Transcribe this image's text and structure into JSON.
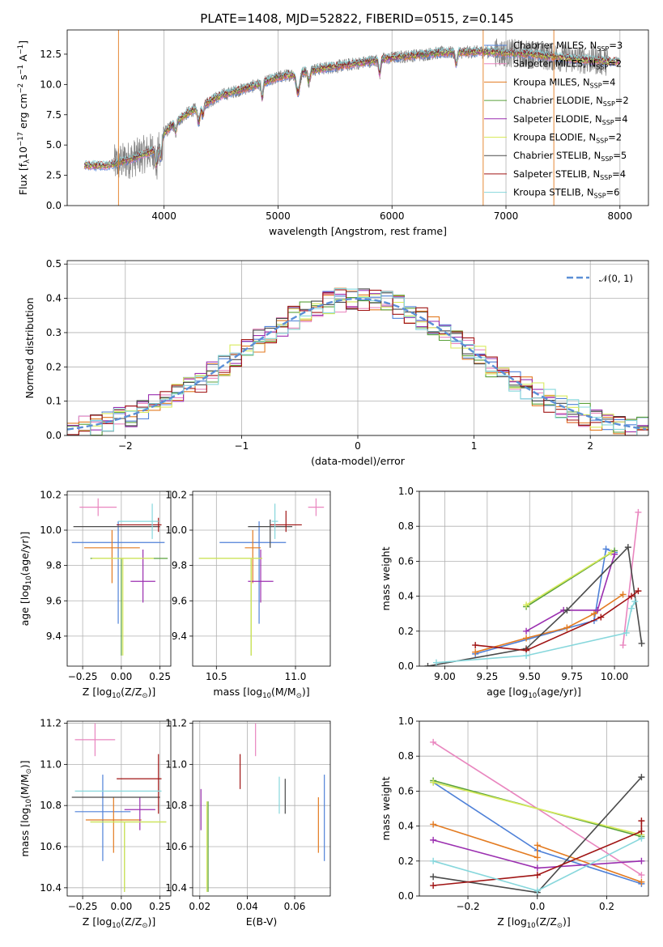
{
  "figure": {
    "title": "PLATE=1408, MJD=52822, FIBERID=0515, z=0.145"
  },
  "models": [
    {
      "name": "Chabrier MILES",
      "nssp": 3,
      "color": "#4f81d8"
    },
    {
      "name": "Salpeter MILES",
      "nssp": 2,
      "color": "#e986bf"
    },
    {
      "name": "Kroupa MILES",
      "nssp": 4,
      "color": "#e37b21"
    },
    {
      "name": "Chabrier ELODIE",
      "nssp": 2,
      "color": "#5aa13a"
    },
    {
      "name": "Salpeter ELODIE",
      "nssp": 4,
      "color": "#9b2fb0"
    },
    {
      "name": "Kroupa ELODIE",
      "nssp": 2,
      "color": "#d8ea5c"
    },
    {
      "name": "Chabrier STELIB",
      "nssp": 5,
      "color": "#4a4a4a"
    },
    {
      "name": "Salpeter STELIB",
      "nssp": 4,
      "color": "#a01414"
    },
    {
      "name": "Kroupa STELIB",
      "nssp": 6,
      "color": "#87d7dc"
    }
  ],
  "legend_labels": [
    "Chabrier MILES, N",
    "Salpeter MILES, N",
    "Kroupa MILES, N",
    "Chabrier ELODIE, N",
    "Salpeter ELODIE, N",
    "Kroupa ELODIE, N",
    "Chabrier STELIB, N",
    "Salpeter STELIB, N",
    "Kroupa STELIB, N"
  ],
  "legend_sub": "SSP",
  "legend_nssp": [
    "=3",
    "=2",
    "=4",
    "=2",
    "=4",
    "=2",
    "=5",
    "=4",
    "=6"
  ],
  "chart_data": [
    {
      "type": "line",
      "xlabel": "wavelength [Angstrom, rest frame]",
      "ylabel": "Flux [f",
      "ylabel_parts": [
        "Flux [f",
        "λ",
        "10",
        "−17",
        " erg cm",
        "−2",
        " s",
        "−1",
        " A",
        "−1",
        "]"
      ],
      "xlim": [
        3150,
        8250
      ],
      "ylim": [
        0,
        14.5
      ],
      "xticks": [
        4000,
        5000,
        6000,
        7000,
        8000
      ],
      "yticks": [
        0.0,
        2.5,
        5.0,
        7.5,
        10.0,
        12.5
      ],
      "xtick_labels": [
        "4000",
        "5000",
        "6000",
        "7000",
        "8000"
      ],
      "ytick_labels": [
        "0.0",
        "2.5",
        "5.0",
        "7.5",
        "10.0",
        "12.5"
      ],
      "grid": "vertical",
      "legend": "top-right",
      "data_color": "#808080",
      "continuum": {
        "x": [
          3300,
          3500,
          3700,
          3900,
          4000,
          4200,
          4500,
          4800,
          5000,
          5300,
          5600,
          6000,
          6400,
          6800,
          7200,
          7600,
          7900,
          8000
        ],
        "y": [
          3.3,
          3.3,
          3.8,
          4.5,
          6.0,
          7.6,
          9.1,
          9.9,
          10.6,
          11.2,
          11.6,
          12.2,
          12.6,
          12.7,
          12.5,
          12.1,
          11.9,
          11.9
        ]
      },
      "data_range": [
        3560,
        7900
      ],
      "gaps": [
        3600,
        6800,
        7420
      ]
    },
    {
      "type": "step",
      "xlabel": "(data-model)/error",
      "ylabel": "Normed distribution",
      "xlim": [
        -2.5,
        2.5
      ],
      "ylim": [
        0,
        0.51
      ],
      "xticks": [
        -2,
        -1,
        0,
        1,
        2
      ],
      "yticks": [
        0.0,
        0.1,
        0.2,
        0.3,
        0.4,
        0.5
      ],
      "xtick_labels": [
        "−2",
        "−1",
        "0",
        "1",
        "2"
      ],
      "ytick_labels": [
        "0.0",
        "0.1",
        "0.2",
        "0.3",
        "0.4",
        "0.5"
      ],
      "grid": true,
      "legend": "top-right",
      "gaussian_label": "𝒩(0, 1)",
      "gaussian_color": "#5b8fd6",
      "bin_width": 0.1
    },
    {
      "type": "errorbar",
      "xlabel": "Z [log",
      "xlabel_parts": [
        "Z [log",
        "10",
        "(Z/Z",
        "⊙",
        ")]"
      ],
      "ylabel_parts": [
        "age  [log",
        "10",
        "(age/yr)]"
      ],
      "xlim": [
        -0.35,
        0.32
      ],
      "ylim": [
        9.23,
        10.22
      ],
      "xticks": [
        -0.25,
        0.0,
        0.25
      ],
      "yticks": [
        9.4,
        9.6,
        9.8,
        10.0,
        10.2
      ],
      "xtick_labels": [
        "−0.25",
        "0.00",
        "0.25"
      ],
      "ytick_labels": [
        "9.4",
        "9.6",
        "9.8",
        "10.0",
        "10.2"
      ],
      "grid": true,
      "points": [
        {
          "model": 0,
          "x": -0.02,
          "y": 9.93,
          "xerr": [
            0.3,
            0.3
          ],
          "yerr": [
            0.46,
            0.12
          ]
        },
        {
          "model": 1,
          "x": -0.15,
          "y": 10.13,
          "xerr": [
            0.12,
            0.12
          ],
          "yerr": [
            0.05,
            0.05
          ]
        },
        {
          "model": 2,
          "x": -0.06,
          "y": 9.9,
          "xerr": [
            0.18,
            0.18
          ],
          "yerr": [
            0.2,
            0.1
          ]
        },
        {
          "model": 3,
          "x": 0.0,
          "y": 9.84,
          "xerr": [
            0.2,
            0.3
          ],
          "yerr": [
            0.55,
            0.0
          ]
        },
        {
          "model": 4,
          "x": 0.14,
          "y": 9.71,
          "xerr": [
            0.08,
            0.08
          ],
          "yerr": [
            0.12,
            0.18
          ]
        },
        {
          "model": 5,
          "x": 0.01,
          "y": 9.84,
          "xerr": [
            0.2,
            0.2
          ],
          "yerr": [
            0.55,
            0.0
          ]
        },
        {
          "model": 6,
          "x": -0.03,
          "y": 10.02,
          "xerr": [
            0.28,
            0.28
          ],
          "yerr": [
            0.0,
            0.0
          ]
        },
        {
          "model": 7,
          "x": 0.24,
          "y": 10.03,
          "xerr": [
            0.27,
            0.02
          ],
          "yerr": [
            0.04,
            0.04
          ]
        },
        {
          "model": 8,
          "x": 0.2,
          "y": 10.05,
          "xerr": [
            0.22,
            0.04
          ],
          "yerr": [
            0.1,
            0.1
          ]
        }
      ]
    },
    {
      "type": "errorbar",
      "xlabel_parts": [
        "mass [log",
        "10",
        "(M/M",
        "⊙",
        ")]"
      ],
      "xlim": [
        10.35,
        11.22
      ],
      "ylim": [
        9.23,
        10.22
      ],
      "xticks": [
        10.5,
        11.0
      ],
      "yticks": [
        9.4,
        9.6,
        9.8,
        10.0,
        10.2
      ],
      "xtick_labels": [
        "10.5",
        "11.0"
      ],
      "ytick_labels": [
        "9.4",
        "9.6",
        "9.8",
        "10.0",
        "10.2"
      ],
      "grid": true,
      "points": [
        {
          "model": 0,
          "x": 10.77,
          "y": 9.93,
          "xerr": [
            0.25,
            0.17
          ],
          "yerr": [
            0.46,
            0.12
          ]
        },
        {
          "model": 1,
          "x": 11.13,
          "y": 10.13,
          "xerr": [
            0.05,
            0.05
          ],
          "yerr": [
            0.05,
            0.05
          ]
        },
        {
          "model": 2,
          "x": 10.73,
          "y": 9.9,
          "xerr": [
            0.05,
            0.05
          ],
          "yerr": [
            0.2,
            0.1
          ]
        },
        {
          "model": 3,
          "x": 10.72,
          "y": 9.84,
          "xerr": [
            0.33,
            0.07
          ],
          "yerr": [
            0.55,
            0.0
          ]
        },
        {
          "model": 4,
          "x": 10.78,
          "y": 9.71,
          "xerr": [
            0.08,
            0.08
          ],
          "yerr": [
            0.12,
            0.18
          ]
        },
        {
          "model": 5,
          "x": 10.72,
          "y": 9.84,
          "xerr": [
            0.33,
            0.07
          ],
          "yerr": [
            0.55,
            0.0
          ]
        },
        {
          "model": 6,
          "x": 10.84,
          "y": 10.02,
          "xerr": [
            0.14,
            0.14
          ],
          "yerr": [
            0.12,
            0.04
          ]
        },
        {
          "model": 7,
          "x": 10.94,
          "y": 10.03,
          "xerr": [
            0.1,
            0.1
          ],
          "yerr": [
            0.04,
            0.08
          ]
        },
        {
          "model": 8,
          "x": 10.87,
          "y": 10.05,
          "xerr": [
            0.02,
            0.02
          ],
          "yerr": [
            0.1,
            0.1
          ]
        }
      ]
    },
    {
      "type": "line",
      "xlabel_parts": [
        "age  [log",
        "10",
        "(age/yr)]"
      ],
      "ylabel": "mass weight",
      "xlim": [
        8.85,
        10.2
      ],
      "ylim": [
        0,
        1.0
      ],
      "xticks": [
        9.0,
        9.25,
        9.5,
        9.75,
        10.0
      ],
      "yticks": [
        0.0,
        0.2,
        0.4,
        0.6,
        0.8,
        1.0
      ],
      "xtick_labels": [
        "9.00",
        "9.25",
        "9.50",
        "9.75",
        "10.00"
      ],
      "ytick_labels": [
        "0.0",
        "0.2",
        "0.4",
        "0.6",
        "0.8",
        "1.0"
      ],
      "grid": true,
      "series": [
        {
          "model": 0,
          "x": [
            9.18,
            9.88,
            9.95,
            10.0
          ],
          "y": [
            0.07,
            0.26,
            0.67,
            0.65
          ]
        },
        {
          "model": 1,
          "x": [
            10.05,
            10.14
          ],
          "y": [
            0.12,
            0.88
          ]
        },
        {
          "model": 2,
          "x": [
            9.18,
            9.48,
            9.72,
            9.88,
            10.05
          ],
          "y": [
            0.08,
            0.16,
            0.22,
            0.3,
            0.41
          ]
        },
        {
          "model": 3,
          "x": [
            9.48,
            10.0
          ],
          "y": [
            0.34,
            0.66
          ]
        },
        {
          "model": 4,
          "x": [
            9.48,
            9.7,
            9.9,
            10.0
          ],
          "y": [
            0.2,
            0.32,
            0.32,
            0.64
          ]
        },
        {
          "model": 5,
          "x": [
            9.48,
            9.98
          ],
          "y": [
            0.35,
            0.65
          ]
        },
        {
          "model": 6,
          "x": [
            8.9,
            9.48,
            9.72,
            10.08,
            10.16
          ],
          "y": [
            0.0,
            0.1,
            0.32,
            0.68,
            0.13
          ]
        },
        {
          "model": 7,
          "x": [
            9.18,
            9.48,
            9.92,
            10.1,
            10.14
          ],
          "y": [
            0.12,
            0.09,
            0.28,
            0.4,
            0.43
          ]
        },
        {
          "model": 8,
          "x": [
            8.95,
            9.48,
            10.07,
            10.1,
            10.12
          ],
          "y": [
            0.02,
            0.06,
            0.19,
            0.33,
            0.37
          ]
        }
      ]
    },
    {
      "type": "errorbar",
      "xlabel_parts": [
        "Z [log",
        "10",
        "(Z/Z",
        "⊙",
        ")]"
      ],
      "ylabel_parts": [
        "mass [log",
        "10",
        "(M/M",
        "⊙",
        ")]"
      ],
      "xlim": [
        -0.35,
        0.32
      ],
      "ylim": [
        10.36,
        11.21
      ],
      "xticks": [
        -0.25,
        0.0,
        0.25
      ],
      "yticks": [
        10.4,
        10.6,
        10.8,
        11.0,
        11.2
      ],
      "xtick_labels": [
        "−0.25",
        "0.00",
        "0.25"
      ],
      "ytick_labels": [
        "10.4",
        "10.6",
        "10.8",
        "11.0",
        "11.2"
      ],
      "grid": true,
      "points": [
        {
          "model": 0,
          "x": -0.12,
          "y": 10.77,
          "xerr": [
            0.18,
            0.18
          ],
          "yerr": [
            0.24,
            0.18
          ]
        },
        {
          "model": 1,
          "x": -0.17,
          "y": 11.12,
          "xerr": [
            0.13,
            0.13
          ],
          "yerr": [
            0.08,
            0.08
          ]
        },
        {
          "model": 2,
          "x": -0.05,
          "y": 10.73,
          "xerr": [
            0.18,
            0.18
          ],
          "yerr": [
            0.16,
            0.11
          ]
        },
        {
          "model": 3,
          "x": 0.02,
          "y": 10.72,
          "xerr": [
            0.22,
            0.27
          ],
          "yerr": [
            0.34,
            0.0
          ]
        },
        {
          "model": 4,
          "x": 0.12,
          "y": 10.78,
          "xerr": [
            0.1,
            0.1
          ],
          "yerr": [
            0.1,
            0.06
          ]
        },
        {
          "model": 5,
          "x": 0.02,
          "y": 10.72,
          "xerr": [
            0.22,
            0.27
          ],
          "yerr": [
            0.34,
            0.0
          ]
        },
        {
          "model": 6,
          "x": -0.05,
          "y": 10.84,
          "xerr": [
            0.27,
            0.3
          ],
          "yerr": [
            0.0,
            0.0
          ]
        },
        {
          "model": 7,
          "x": 0.24,
          "y": 10.93,
          "xerr": [
            0.27,
            0.02
          ],
          "yerr": [
            0.17,
            0.12
          ]
        },
        {
          "model": 8,
          "x": -0.05,
          "y": 10.87,
          "xerr": [
            0.25,
            0.31
          ],
          "yerr": [
            0.0,
            0.0
          ]
        }
      ]
    },
    {
      "type": "errorbar",
      "xlabel": "E(B-V)",
      "xlim": [
        0.017,
        0.075
      ],
      "ylim": [
        10.36,
        11.21
      ],
      "xticks": [
        0.02,
        0.04,
        0.06
      ],
      "yticks": [
        10.4,
        10.6,
        10.8,
        11.0,
        11.2
      ],
      "xtick_labels": [
        "0.02",
        "0.04",
        "0.06"
      ],
      "ytick_labels": [
        "10.4",
        "10.6",
        "10.8",
        "11.0",
        "11.2"
      ],
      "grid": true,
      "points": [
        {
          "model": 0,
          "x": 0.0725,
          "y": 10.77,
          "xerr": [
            0,
            0
          ],
          "yerr": [
            0.24,
            0.18
          ]
        },
        {
          "model": 1,
          "x": 0.0435,
          "y": 11.12,
          "xerr": [
            0,
            0
          ],
          "yerr": [
            0.08,
            0.08
          ]
        },
        {
          "model": 2,
          "x": 0.07,
          "y": 10.73,
          "xerr": [
            0,
            0
          ],
          "yerr": [
            0.16,
            0.11
          ]
        },
        {
          "model": 3,
          "x": 0.0235,
          "y": 10.72,
          "xerr": [
            0,
            0
          ],
          "yerr": [
            0.34,
            0.1
          ]
        },
        {
          "model": 4,
          "x": 0.0205,
          "y": 10.78,
          "xerr": [
            0,
            0
          ],
          "yerr": [
            0.1,
            0.1
          ]
        },
        {
          "model": 5,
          "x": 0.023,
          "y": 10.72,
          "xerr": [
            0,
            0
          ],
          "yerr": [
            0.34,
            0.1
          ]
        },
        {
          "model": 6,
          "x": 0.056,
          "y": 10.84,
          "xerr": [
            0,
            0
          ],
          "yerr": [
            0.08,
            0.09
          ]
        },
        {
          "model": 7,
          "x": 0.037,
          "y": 10.96,
          "xerr": [
            0,
            0
          ],
          "yerr": [
            0.08,
            0.09
          ]
        },
        {
          "model": 8,
          "x": 0.0535,
          "y": 10.84,
          "xerr": [
            0,
            0
          ],
          "yerr": [
            0.08,
            0.1
          ]
        }
      ]
    },
    {
      "type": "line",
      "xlabel_parts": [
        "Z [log",
        "10",
        "(Z/Z",
        "⊙",
        ")]"
      ],
      "ylabel": "mass weight",
      "xlim": [
        -0.34,
        0.32
      ],
      "ylim": [
        0,
        1.0
      ],
      "xticks": [
        -0.2,
        0.0,
        0.2
      ],
      "yticks": [
        0.0,
        0.2,
        0.4,
        0.6,
        0.8,
        1.0
      ],
      "xtick_labels": [
        "−0.2",
        "0.0",
        "0.2"
      ],
      "ytick_labels": [
        "0.0",
        "0.2",
        "0.4",
        "0.6",
        "0.8",
        "1.0"
      ],
      "grid": true,
      "series": [
        {
          "model": 0,
          "x": [
            -0.3,
            0.0,
            0.3
          ],
          "y": [
            0.65,
            0.26,
            0.07
          ]
        },
        {
          "model": 1,
          "x": [
            -0.3,
            0.3
          ],
          "y": [
            0.88,
            0.12
          ]
        },
        {
          "model": 2,
          "x": [
            -0.3,
            0.0,
            0.0,
            0.3
          ],
          "y": [
            0.41,
            0.22,
            0.29,
            0.08
          ]
        },
        {
          "model": 3,
          "x": [
            -0.3,
            0.3
          ],
          "y": [
            0.66,
            0.34
          ]
        },
        {
          "model": 4,
          "x": [
            -0.3,
            0.0,
            0.3
          ],
          "y": [
            0.32,
            0.16,
            0.2
          ]
        },
        {
          "model": 5,
          "x": [
            -0.3,
            0.3
          ],
          "y": [
            0.65,
            0.35
          ]
        },
        {
          "model": 6,
          "x": [
            -0.3,
            0.0,
            0.3
          ],
          "y": [
            0.11,
            0.02,
            0.68
          ]
        },
        {
          "model": 7,
          "x": [
            -0.3,
            0.0,
            0.3,
            0.3
          ],
          "y": [
            0.06,
            0.12,
            0.37,
            0.43
          ]
        },
        {
          "model": 8,
          "x": [
            -0.3,
            0.0,
            0.3
          ],
          "y": [
            0.2,
            0.03,
            0.33
          ]
        }
      ]
    }
  ]
}
